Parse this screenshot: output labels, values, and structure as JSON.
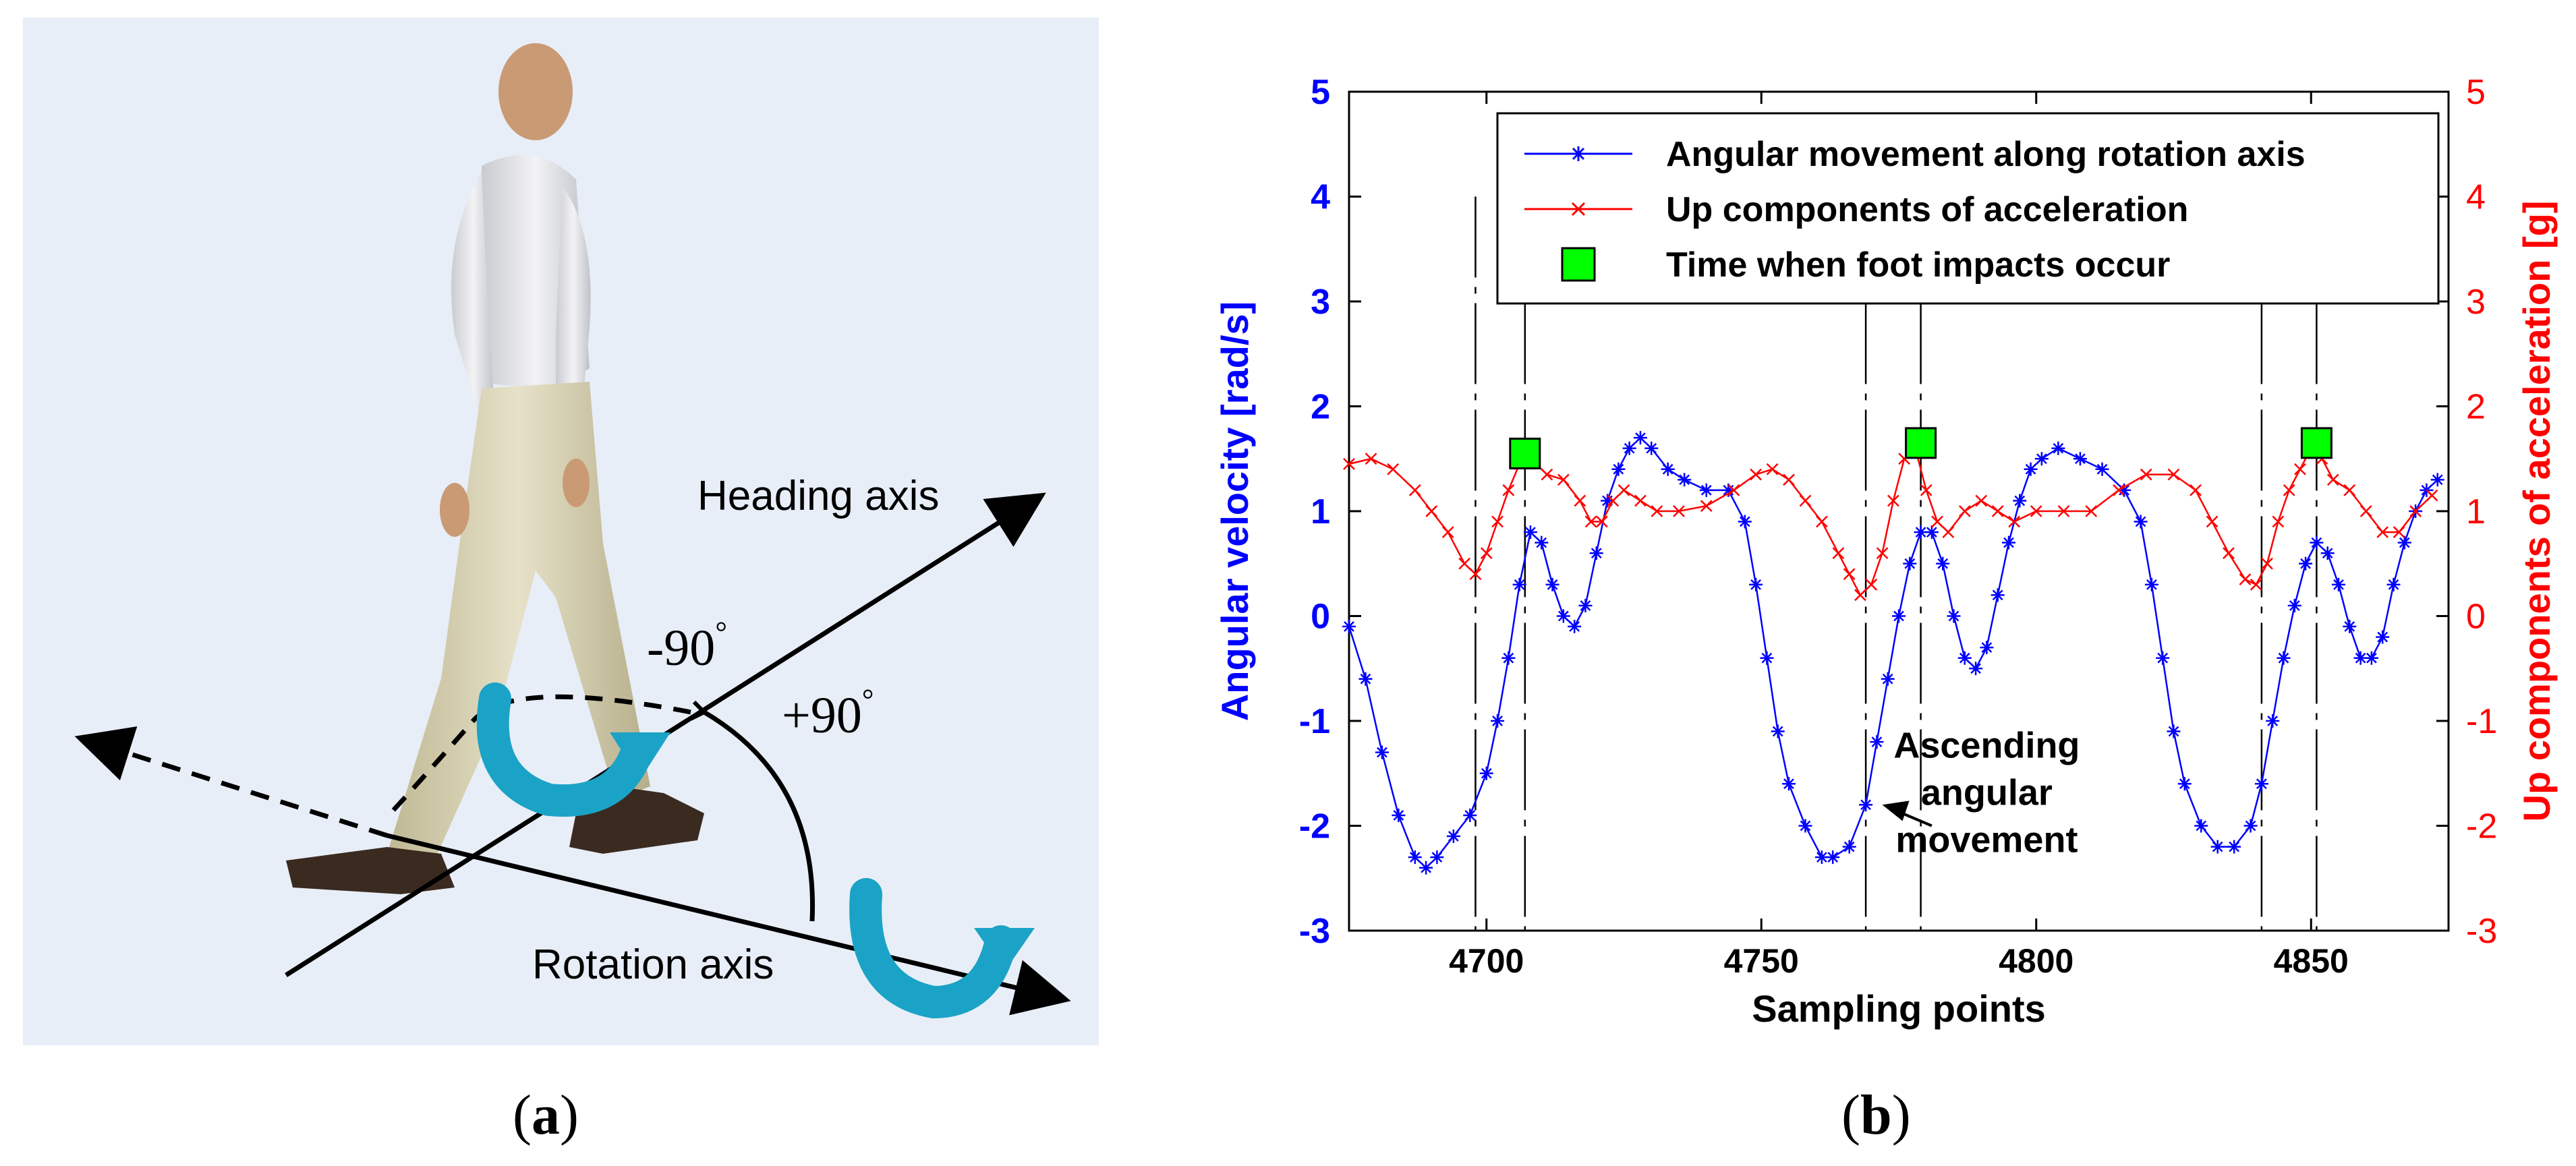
{
  "panel_a": {
    "caption_open": "(",
    "caption_letter": "a",
    "caption_close": ")",
    "heading_axis_label": "Heading axis",
    "rotation_axis_label": "Rotation axis",
    "angle_neg_label": "-90",
    "angle_pos_label": "+90",
    "degree_symbol": "°",
    "colors": {
      "background": "#e8eef7",
      "rotation_arrow": "#1aa3c6"
    }
  },
  "panel_b": {
    "caption_open": "(",
    "caption_letter": "b",
    "caption_close": ")",
    "annotation_line1": "Ascending",
    "annotation_line2": "angular",
    "annotation_line3": "movement",
    "chart_data": {
      "type": "line",
      "xlabel": "Sampling points",
      "ylabel_left": "Angular velocity [rad/s]",
      "ylabel_right": "Up components of acceleration [g]",
      "xlim": [
        4675,
        4875
      ],
      "ylim_left": [
        -3,
        5
      ],
      "ylim_right": [
        -3,
        5
      ],
      "x_ticks": [
        4700,
        4750,
        4800,
        4850
      ],
      "y_ticks_left": [
        -3,
        -2,
        -1,
        0,
        1,
        2,
        3,
        4,
        5
      ],
      "y_ticks_right": [
        -3,
        -2,
        -1,
        0,
        1,
        2,
        3,
        4,
        5
      ],
      "legend_placement": "top-right",
      "grid": false,
      "colors": {
        "left_axis": "#0000ff",
        "right_axis": "#ff0000",
        "impact": "#00ff00"
      },
      "vertical_dashed_lines_x": [
        4698,
        4707,
        4769,
        4779,
        4841,
        4851
      ],
      "series": [
        {
          "name": "Angular movement along rotation axis",
          "marker": "*",
          "color": "#0000ff",
          "points": [
            [
              4675,
              -0.1
            ],
            [
              4678,
              -0.6
            ],
            [
              4681,
              -1.3
            ],
            [
              4684,
              -1.9
            ],
            [
              4687,
              -2.3
            ],
            [
              4689,
              -2.4
            ],
            [
              4691,
              -2.3
            ],
            [
              4694,
              -2.1
            ],
            [
              4697,
              -1.9
            ],
            [
              4700,
              -1.5
            ],
            [
              4702,
              -1.0
            ],
            [
              4704,
              -0.4
            ],
            [
              4706,
              0.3
            ],
            [
              4708,
              0.8
            ],
            [
              4710,
              0.7
            ],
            [
              4712,
              0.3
            ],
            [
              4714,
              0.0
            ],
            [
              4716,
              -0.1
            ],
            [
              4718,
              0.1
            ],
            [
              4720,
              0.6
            ],
            [
              4722,
              1.1
            ],
            [
              4724,
              1.4
            ],
            [
              4726,
              1.6
            ],
            [
              4728,
              1.7
            ],
            [
              4730,
              1.6
            ],
            [
              4733,
              1.4
            ],
            [
              4736,
              1.3
            ],
            [
              4740,
              1.2
            ],
            [
              4744,
              1.2
            ],
            [
              4747,
              0.9
            ],
            [
              4749,
              0.3
            ],
            [
              4751,
              -0.4
            ],
            [
              4753,
              -1.1
            ],
            [
              4755,
              -1.6
            ],
            [
              4758,
              -2.0
            ],
            [
              4761,
              -2.3
            ],
            [
              4763,
              -2.3
            ],
            [
              4766,
              -2.2
            ],
            [
              4769,
              -1.8
            ],
            [
              4771,
              -1.2
            ],
            [
              4773,
              -0.6
            ],
            [
              4775,
              0.0
            ],
            [
              4777,
              0.5
            ],
            [
              4779,
              0.8
            ],
            [
              4781,
              0.8
            ],
            [
              4783,
              0.5
            ],
            [
              4785,
              0.0
            ],
            [
              4787,
              -0.4
            ],
            [
              4789,
              -0.5
            ],
            [
              4791,
              -0.3
            ],
            [
              4793,
              0.2
            ],
            [
              4795,
              0.7
            ],
            [
              4797,
              1.1
            ],
            [
              4799,
              1.4
            ],
            [
              4801,
              1.5
            ],
            [
              4804,
              1.6
            ],
            [
              4808,
              1.5
            ],
            [
              4812,
              1.4
            ],
            [
              4816,
              1.2
            ],
            [
              4819,
              0.9
            ],
            [
              4821,
              0.3
            ],
            [
              4823,
              -0.4
            ],
            [
              4825,
              -1.1
            ],
            [
              4827,
              -1.6
            ],
            [
              4830,
              -2.0
            ],
            [
              4833,
              -2.2
            ],
            [
              4836,
              -2.2
            ],
            [
              4839,
              -2.0
            ],
            [
              4841,
              -1.6
            ],
            [
              4843,
              -1.0
            ],
            [
              4845,
              -0.4
            ],
            [
              4847,
              0.1
            ],
            [
              4849,
              0.5
            ],
            [
              4851,
              0.7
            ],
            [
              4853,
              0.6
            ],
            [
              4855,
              0.3
            ],
            [
              4857,
              -0.1
            ],
            [
              4859,
              -0.4
            ],
            [
              4861,
              -0.4
            ],
            [
              4863,
              -0.2
            ],
            [
              4865,
              0.3
            ],
            [
              4867,
              0.7
            ],
            [
              4869,
              1.0
            ],
            [
              4871,
              1.2
            ],
            [
              4873,
              1.3
            ]
          ]
        },
        {
          "name": "Up components of acceleration",
          "marker": "x",
          "color": "#ff0000",
          "points": [
            [
              4675,
              1.45
            ],
            [
              4679,
              1.5
            ],
            [
              4683,
              1.4
            ],
            [
              4687,
              1.2
            ],
            [
              4690,
              1.0
            ],
            [
              4693,
              0.8
            ],
            [
              4696,
              0.5
            ],
            [
              4698,
              0.4
            ],
            [
              4700,
              0.6
            ],
            [
              4702,
              0.9
            ],
            [
              4704,
              1.2
            ],
            [
              4706,
              1.45
            ],
            [
              4708,
              1.5
            ],
            [
              4711,
              1.35
            ],
            [
              4714,
              1.3
            ],
            [
              4717,
              1.1
            ],
            [
              4719,
              0.9
            ],
            [
              4721,
              0.9
            ],
            [
              4723,
              1.1
            ],
            [
              4725,
              1.2
            ],
            [
              4728,
              1.1
            ],
            [
              4731,
              1.0
            ],
            [
              4735,
              1.0
            ],
            [
              4740,
              1.05
            ],
            [
              4745,
              1.2
            ],
            [
              4749,
              1.35
            ],
            [
              4752,
              1.4
            ],
            [
              4755,
              1.3
            ],
            [
              4758,
              1.1
            ],
            [
              4761,
              0.9
            ],
            [
              4764,
              0.6
            ],
            [
              4766,
              0.4
            ],
            [
              4768,
              0.2
            ],
            [
              4770,
              0.3
            ],
            [
              4772,
              0.6
            ],
            [
              4774,
              1.1
            ],
            [
              4776,
              1.5
            ],
            [
              4778,
              1.6
            ],
            [
              4780,
              1.2
            ],
            [
              4782,
              0.9
            ],
            [
              4784,
              0.8
            ],
            [
              4787,
              1.0
            ],
            [
              4790,
              1.1
            ],
            [
              4793,
              1.0
            ],
            [
              4796,
              0.9
            ],
            [
              4800,
              1.0
            ],
            [
              4805,
              1.0
            ],
            [
              4810,
              1.0
            ],
            [
              4815,
              1.2
            ],
            [
              4820,
              1.35
            ],
            [
              4825,
              1.35
            ],
            [
              4829,
              1.2
            ],
            [
              4832,
              0.9
            ],
            [
              4835,
              0.6
            ],
            [
              4838,
              0.35
            ],
            [
              4840,
              0.3
            ],
            [
              4842,
              0.5
            ],
            [
              4844,
              0.9
            ],
            [
              4846,
              1.2
            ],
            [
              4848,
              1.4
            ],
            [
              4850,
              1.6
            ],
            [
              4852,
              1.5
            ],
            [
              4854,
              1.3
            ],
            [
              4857,
              1.2
            ],
            [
              4860,
              1.0
            ],
            [
              4863,
              0.8
            ],
            [
              4866,
              0.8
            ],
            [
              4869,
              1.0
            ],
            [
              4872,
              1.15
            ]
          ]
        },
        {
          "name": "Time when foot impacts occur",
          "marker": "square",
          "color": "#00ff00",
          "points": [
            [
              4707,
              1.55
            ],
            [
              4779,
              1.65
            ],
            [
              4851,
              1.65
            ]
          ]
        }
      ]
    }
  }
}
